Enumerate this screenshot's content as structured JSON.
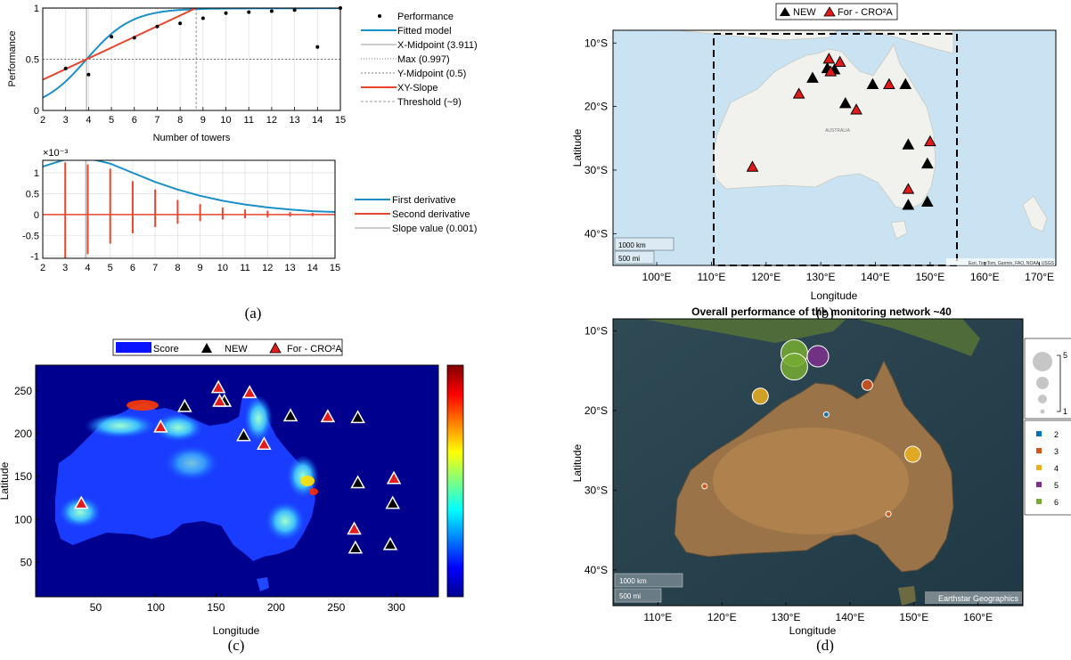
{
  "panels": {
    "a": {
      "caption": "(a)",
      "top": {
        "xlabel": "Number of towers",
        "ylabel": "Performance",
        "xticks": [
          2,
          3,
          4,
          5,
          6,
          7,
          8,
          9,
          10,
          11,
          12,
          13,
          14,
          15
        ],
        "yticks": [
          "0",
          "0.5",
          "1"
        ],
        "legend": [
          "Performance",
          "Fitted model",
          "X-Midpoint (3.911)",
          "Max (0.997)",
          "Y-Midpoint (0.5)",
          "XY-Slope",
          "Threshold (~9)"
        ]
      },
      "bottom": {
        "exponent": "×10⁻³",
        "xticks": [
          2,
          3,
          4,
          5,
          6,
          7,
          8,
          9,
          10,
          11,
          12,
          13,
          14,
          15
        ],
        "yticks": [
          "1",
          "0.5",
          "0",
          "-0.5",
          "-1"
        ],
        "legend": [
          "First derivative",
          "Second derivative",
          "Slope value (0.001)"
        ]
      }
    },
    "b": {
      "caption": "(b)",
      "legend": [
        "NEW",
        "For - CRO²A"
      ],
      "xlabel": "Longitude",
      "ylabel": "Latitude",
      "xticks": [
        "100°E",
        "110°E",
        "120°E",
        "130°E",
        "140°E",
        "150°E",
        "160°E",
        "170°E"
      ],
      "yticks": [
        "10°S",
        "20°S",
        "30°S",
        "40°S"
      ],
      "scale": [
        "1000 km",
        "500 mi"
      ],
      "attribution": "Esri, TomTom, Garmin, FAO, NOAA, USGS",
      "country": "AUSTRALIA"
    },
    "c": {
      "caption": "(c)",
      "legend": [
        "Score",
        "NEW",
        "For - CRO²A"
      ],
      "xlabel": "Longitude",
      "ylabel": "Latitude",
      "xticks": [
        "50",
        "100",
        "150",
        "200",
        "250",
        "300"
      ],
      "yticks": [
        "250",
        "200",
        "150",
        "100",
        "50"
      ]
    },
    "d": {
      "caption": "(d)",
      "title": "Overall performance of the monitoring network ~40",
      "xlabel": "Longitude",
      "ylabel": "Latitude",
      "xticks": [
        "110°E",
        "120°E",
        "130°E",
        "140°E",
        "150°E",
        "160°E"
      ],
      "yticks": [
        "10°S",
        "20°S",
        "30°S",
        "40°S"
      ],
      "scale": [
        "1000 km",
        "500 mi"
      ],
      "attribution": "Earthstar Geographics",
      "size_legend": [
        "5",
        "1"
      ],
      "color_legend": [
        "2",
        "3",
        "4",
        "5",
        "6"
      ],
      "colors": [
        "#0072bd",
        "#d95319",
        "#edb120",
        "#7e2f8e",
        "#77ac30"
      ]
    }
  },
  "chart_data": [
    {
      "type": "scatter",
      "panel": "a-top",
      "xlabel": "Number of towers",
      "ylabel": "Performance",
      "xlim": [
        2,
        15
      ],
      "ylim": [
        0,
        1
      ],
      "series": [
        {
          "name": "Performance",
          "x": [
            3,
            4,
            5,
            6,
            7,
            8,
            9,
            10,
            11,
            12,
            13,
            14,
            15
          ],
          "y": [
            0.41,
            0.35,
            0.72,
            0.71,
            0.82,
            0.85,
            0.9,
            0.95,
            0.96,
            0.97,
            0.98,
            0.62,
            1.0
          ]
        },
        {
          "name": "Fitted model",
          "model": "logistic",
          "max": 0.997,
          "midpoint": 3.911,
          "k": 0.46
        },
        {
          "name": "XY-Slope",
          "x": [
            2,
            8.7
          ],
          "y": [
            0.3,
            1.0
          ]
        }
      ],
      "reference_lines": {
        "X-Midpoint (3.911)": 3.911,
        "Max (0.997)": 0.997,
        "Y-Midpoint (0.5)": 0.5,
        "Threshold (~9)": 8.7
      }
    },
    {
      "type": "line",
      "panel": "a-bottom",
      "xlim": [
        2,
        15
      ],
      "ylim": [
        -1.05,
        1.3
      ],
      "y_unit": "1e-3",
      "series": [
        {
          "name": "First derivative",
          "x": [
            2,
            3,
            4,
            5,
            6,
            7,
            8,
            9,
            10,
            11,
            12,
            13,
            14,
            15
          ],
          "y": [
            1.15,
            1.32,
            1.35,
            1.22,
            1.0,
            0.78,
            0.6,
            0.45,
            0.33,
            0.24,
            0.17,
            0.12,
            0.08,
            0.06
          ]
        },
        {
          "name": "Second derivative",
          "x": [
            3,
            4,
            5,
            6,
            7,
            8,
            9,
            10,
            11,
            12,
            13,
            14
          ],
          "y": [
            -1.05,
            -0.95,
            -0.7,
            -0.45,
            -0.3,
            -0.22,
            -0.16,
            -0.12,
            -0.09,
            -0.07,
            -0.05,
            -0.04
          ],
          "spike_top": [
            1.25,
            1.2,
            1.1,
            0.8,
            0.6,
            0.35,
            0.25,
            0.17,
            0.12,
            0.09,
            0.06,
            0.04
          ]
        },
        {
          "name": "Slope value (0.001)",
          "value": 1.35
        }
      ]
    },
    {
      "type": "scatter",
      "panel": "b",
      "xlim": [
        92,
        173
      ],
      "ylim": [
        -45,
        -8
      ],
      "series": [
        {
          "name": "NEW",
          "lon": [
            128.5,
            131.2,
            132.5,
            134.5,
            139.5,
            145.5,
            146.0,
            149.5,
            146.0,
            149.5
          ],
          "lat": [
            -15.5,
            -14.0,
            -14.2,
            -19.5,
            -16.5,
            -16.5,
            -26.0,
            -29.0,
            -35.5,
            -35.0
          ]
        },
        {
          "name": "For - CRO²A",
          "lon": [
            117.5,
            126.0,
            131.5,
            133.5,
            131.8,
            136.5,
            142.5,
            150.0,
            146.0
          ],
          "lat": [
            -29.5,
            -18.0,
            -12.5,
            -13.0,
            -14.5,
            -20.5,
            -16.5,
            -25.5,
            -33.0
          ]
        }
      ],
      "box": {
        "lon": [
          113,
          154
        ],
        "lat": [
          -44,
          -9.5
        ]
      }
    },
    {
      "type": "heatmap",
      "panel": "c",
      "xlim": [
        0,
        335
      ],
      "ylim": [
        10,
        280
      ],
      "series": [
        {
          "name": "NEW",
          "x": [
            124,
            157,
            173,
            212,
            268,
            268,
            297,
            266,
            295
          ],
          "y": [
            232,
            238,
            198,
            221,
            219,
            143,
            119,
            67,
            71
          ]
        },
        {
          "name": "For - CRO²A",
          "x": [
            38,
            104,
            152,
            153,
            178,
            190,
            243,
            298,
            265
          ],
          "y": [
            119,
            208,
            254,
            238,
            248,
            188,
            220,
            148,
            89
          ]
        }
      ]
    },
    {
      "type": "scatter",
      "panel": "d",
      "title": "Overall performance of the monitoring network ~40",
      "xlim": [
        103,
        167
      ],
      "ylim": [
        -44.5,
        -8.5
      ],
      "series": [
        {
          "lon": [
            131.3,
            131.3,
            135.0,
            126.0,
            142.7,
            149.8,
            136.3,
            117.3,
            146.0
          ],
          "lat": [
            -12.8,
            -14.5,
            -13.2,
            -18.2,
            -16.8,
            -25.5,
            -20.5,
            -29.5,
            -33.0
          ],
          "size": [
            5,
            5,
            4,
            3,
            2,
            3,
            1,
            1,
            1
          ],
          "group": [
            6,
            6,
            5,
            4,
            3,
            4,
            2,
            3,
            3
          ]
        }
      ]
    }
  ]
}
